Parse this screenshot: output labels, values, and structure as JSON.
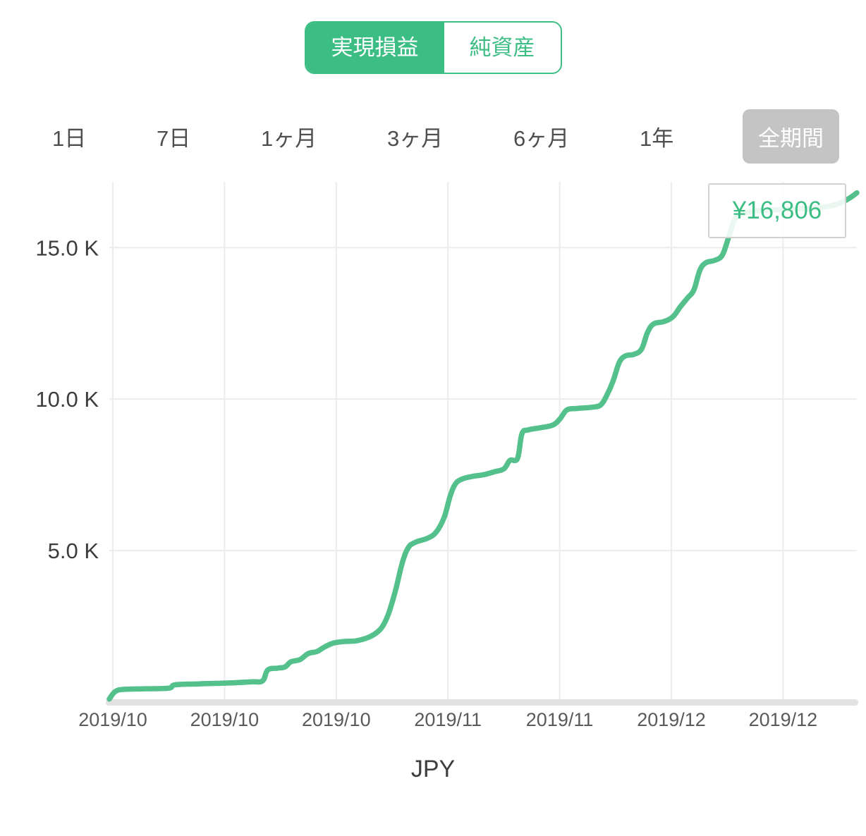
{
  "tabs": {
    "realized_pnl": "実現損益",
    "net_assets": "純資産"
  },
  "periods": {
    "items": [
      {
        "label": "1日"
      },
      {
        "label": "7日"
      },
      {
        "label": "1ヶ月"
      },
      {
        "label": "3ヶ月"
      },
      {
        "label": "6ヶ月"
      },
      {
        "label": "1年"
      },
      {
        "label": "全期間"
      }
    ],
    "active_label": "全期間"
  },
  "colors": {
    "accent_green": "#3cbd83",
    "line_green": "#54c18c",
    "period_active_bg": "#c4c4c4",
    "grid": "#ececec",
    "baseline": "#e2e2e2",
    "axis_text": "#3d3d3d",
    "x_axis_text": "#5a5a5a",
    "value_text": "#3cbd83"
  },
  "chart_data": {
    "type": "line",
    "series": [
      {
        "name": "実現損益",
        "points": [
          [
            0,
            100
          ],
          [
            0.008,
            350
          ],
          [
            0.02,
            420
          ],
          [
            0.05,
            440
          ],
          [
            0.08,
            460
          ],
          [
            0.088,
            570
          ],
          [
            0.12,
            600
          ],
          [
            0.16,
            630
          ],
          [
            0.19,
            670
          ],
          [
            0.205,
            700
          ],
          [
            0.212,
            1060
          ],
          [
            0.225,
            1120
          ],
          [
            0.235,
            1160
          ],
          [
            0.243,
            1330
          ],
          [
            0.255,
            1400
          ],
          [
            0.266,
            1600
          ],
          [
            0.278,
            1670
          ],
          [
            0.288,
            1820
          ],
          [
            0.3,
            1950
          ],
          [
            0.315,
            2000
          ],
          [
            0.33,
            2020
          ],
          [
            0.345,
            2120
          ],
          [
            0.357,
            2280
          ],
          [
            0.366,
            2520
          ],
          [
            0.374,
            2950
          ],
          [
            0.383,
            3700
          ],
          [
            0.392,
            4600
          ],
          [
            0.4,
            5100
          ],
          [
            0.41,
            5280
          ],
          [
            0.425,
            5400
          ],
          [
            0.437,
            5600
          ],
          [
            0.448,
            6100
          ],
          [
            0.456,
            6800
          ],
          [
            0.463,
            7200
          ],
          [
            0.472,
            7360
          ],
          [
            0.486,
            7450
          ],
          [
            0.5,
            7500
          ],
          [
            0.515,
            7600
          ],
          [
            0.528,
            7700
          ],
          [
            0.536,
            7980
          ],
          [
            0.546,
            8040
          ],
          [
            0.552,
            8850
          ],
          [
            0.56,
            8980
          ],
          [
            0.578,
            9060
          ],
          [
            0.594,
            9150
          ],
          [
            0.603,
            9350
          ],
          [
            0.612,
            9640
          ],
          [
            0.625,
            9690
          ],
          [
            0.645,
            9730
          ],
          [
            0.657,
            9800
          ],
          [
            0.665,
            10100
          ],
          [
            0.674,
            10600
          ],
          [
            0.682,
            11200
          ],
          [
            0.69,
            11420
          ],
          [
            0.702,
            11480
          ],
          [
            0.712,
            11650
          ],
          [
            0.72,
            12200
          ],
          [
            0.728,
            12480
          ],
          [
            0.742,
            12560
          ],
          [
            0.754,
            12720
          ],
          [
            0.764,
            13050
          ],
          [
            0.774,
            13350
          ],
          [
            0.782,
            13600
          ],
          [
            0.79,
            14250
          ],
          [
            0.798,
            14500
          ],
          [
            0.81,
            14580
          ],
          [
            0.82,
            14750
          ],
          [
            0.828,
            15300
          ],
          [
            0.836,
            15900
          ],
          [
            0.845,
            16100
          ],
          [
            0.862,
            16200
          ],
          [
            0.89,
            16250
          ],
          [
            0.92,
            16280
          ],
          [
            0.95,
            16320
          ],
          [
            0.972,
            16420
          ],
          [
            0.988,
            16600
          ],
          [
            1,
            16806
          ]
        ]
      }
    ],
    "x_tick_labels": [
      "2019/10",
      "2019/10",
      "2019/10",
      "2019/11",
      "2019/11",
      "2019/12",
      "2019/12"
    ],
    "y_ticks": [
      {
        "value": 5000,
        "label": "5.0 K"
      },
      {
        "value": 10000,
        "label": "10.0 K"
      },
      {
        "value": 15000,
        "label": "15.0 K"
      }
    ],
    "ylim": [
      0,
      17100
    ],
    "grid": true,
    "legend": false,
    "xlabel": "JPY",
    "last_value": 16806,
    "last_value_label": "¥16,806"
  }
}
